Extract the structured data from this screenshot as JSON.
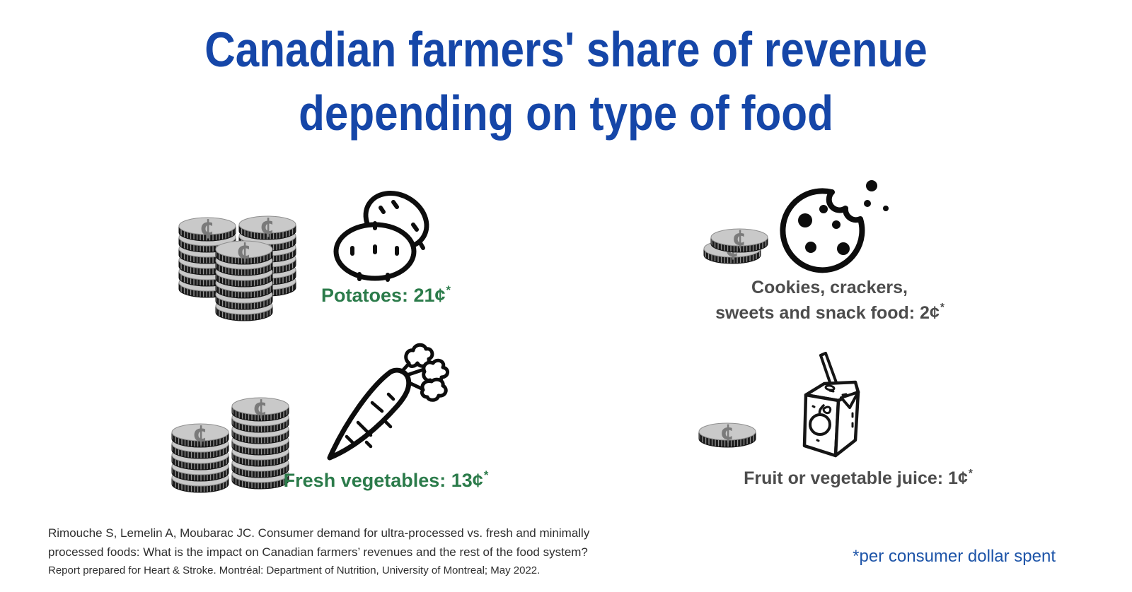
{
  "title": {
    "line1": "Canadian farmers' share of revenue",
    "line2": "depending on type of food"
  },
  "coin_symbol": "¢",
  "items": [
    {
      "id": "potatoes",
      "label": "Potatoes: 21¢",
      "asterisk": "*",
      "cents_per_dollar": 21,
      "coin_stacks": [
        6,
        6,
        6
      ],
      "icon": "potatoes-icon"
    },
    {
      "id": "fresh-vegetables",
      "label": "Fresh vegetables: 13¢",
      "asterisk": "*",
      "cents_per_dollar": 13,
      "coin_stacks": [
        7,
        5
      ],
      "icon": "carrot-icon"
    },
    {
      "id": "cookies-crackers-sweets-snacks",
      "label_line1": "Cookies, crackers,",
      "label_line2": "sweets and snack food: 2¢",
      "asterisk": "*",
      "cents_per_dollar": 2,
      "coin_stacks": [
        1,
        1
      ],
      "icon": "cookie-icon"
    },
    {
      "id": "fruit-vegetable-juice",
      "label": "Fruit or vegetable juice: 1¢",
      "asterisk": "*",
      "cents_per_dollar": 1,
      "coin_stacks": [
        1
      ],
      "icon": "juice-box-icon"
    }
  ],
  "citation": {
    "para1": "Rimouche S, Lemelin A, Moubarac JC. Consumer demand for ultra-processed vs. fresh and minimally processed foods: What is the impact on Canadian farmers’ revenues and the rest of the food system?",
    "para2": "Report prepared for Heart & Stroke. Montréal: Department of Nutrition, University of Montreal; May 2022."
  },
  "footnote": "*per consumer dollar spent",
  "colors": {
    "title-blue": "#1546a8",
    "footnote-blue": "#1d54a8",
    "label-green": "#2b7b4a",
    "label-gray": "#4c4c4c",
    "text-dark": "#2f2f2f"
  },
  "chart_data": {
    "type": "bar",
    "title": "Canadian farmers' share of revenue depending on type of food",
    "categories": [
      "Potatoes",
      "Fresh vegetables",
      "Cookies, crackers, sweets and snack food",
      "Fruit or vegetable juice"
    ],
    "values": [
      21,
      13,
      2,
      1
    ],
    "unit": "cents per consumer dollar spent",
    "ylim": [
      0,
      21
    ],
    "legend": false,
    "grid": false
  }
}
